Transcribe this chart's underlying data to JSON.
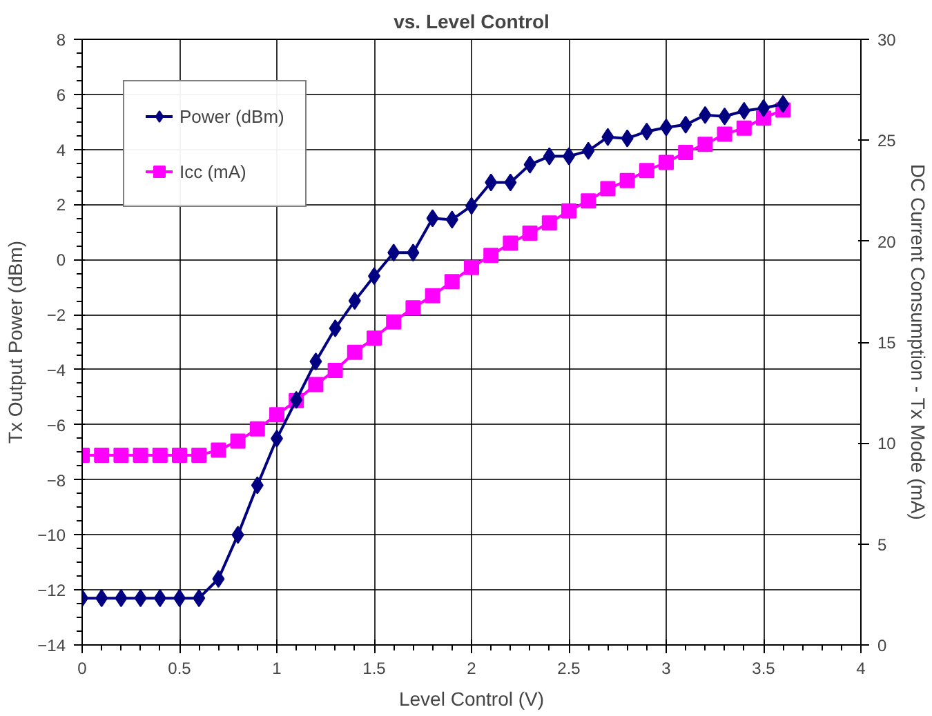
{
  "chart_data": {
    "type": "line",
    "title": "vs. Level Control",
    "xlabel": "Level Control (V)",
    "ylabel": "Tx Output Power (dBm)",
    "y2label": "DC Current Consumption - Tx Mode (mA)",
    "x": [
      0,
      0.1,
      0.2,
      0.3,
      0.4,
      0.5,
      0.6,
      0.7,
      0.8,
      0.9,
      1.0,
      1.1,
      1.2,
      1.3,
      1.4,
      1.5,
      1.6,
      1.7,
      1.8,
      1.9,
      2.0,
      2.1,
      2.2,
      2.3,
      2.4,
      2.5,
      2.6,
      2.7,
      2.8,
      2.9,
      3.0,
      3.1,
      3.2,
      3.3,
      3.4,
      3.5,
      3.6
    ],
    "series": [
      {
        "name": "Power (dBm)",
        "color": "#000080",
        "marker": "diamond",
        "values": [
          -12.3,
          -12.3,
          -12.3,
          -12.3,
          -12.3,
          -12.3,
          -12.3,
          -11.6,
          -10.0,
          -8.2,
          -6.5,
          -5.1,
          -3.7,
          -2.5,
          -1.5,
          -0.6,
          0.25,
          0.25,
          1.5,
          1.45,
          1.95,
          2.8,
          2.8,
          3.45,
          3.75,
          3.75,
          3.95,
          4.45,
          4.4,
          4.65,
          4.8,
          4.9,
          5.25,
          5.2,
          5.4,
          5.5,
          5.65
        ]
      },
      {
        "name": "Icc (mA)",
        "color": "#ff00ff",
        "marker": "square",
        "axis": "y2",
        "values": [
          9.4,
          9.4,
          9.4,
          9.4,
          9.4,
          9.4,
          9.4,
          9.65,
          10.1,
          10.7,
          11.4,
          12.1,
          12.9,
          13.6,
          14.5,
          15.2,
          16.0,
          16.7,
          17.3,
          18.0,
          18.7,
          19.3,
          19.9,
          20.4,
          20.9,
          21.5,
          22.0,
          22.6,
          23.0,
          23.5,
          23.9,
          24.4,
          24.8,
          25.3,
          25.6,
          26.1,
          26.5
        ]
      }
    ],
    "xlim": [
      0,
      4
    ],
    "xticks": [
      0,
      0.5,
      1,
      1.5,
      2,
      2.5,
      3,
      3.5,
      4
    ],
    "ylim": [
      -14,
      8
    ],
    "yticks": [
      -14,
      -12,
      -10,
      -8,
      -6,
      -4,
      -2,
      0,
      2,
      4,
      6,
      8
    ],
    "y2lim": [
      0,
      30
    ],
    "y2ticks": [
      0,
      5,
      10,
      15,
      20,
      25,
      30
    ],
    "grid": true,
    "legend": "top left",
    "line_style": "solid"
  }
}
